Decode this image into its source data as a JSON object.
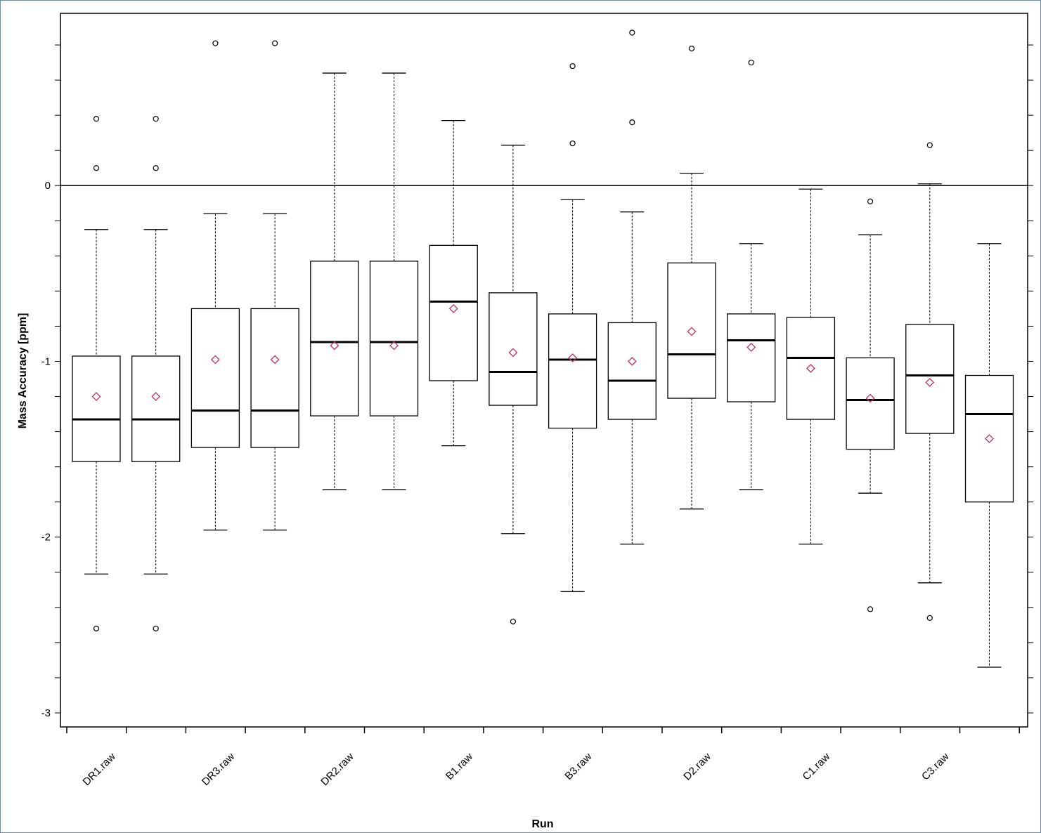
{
  "chart_data": {
    "type": "box",
    "xlabel": "Run",
    "ylabel": "Mass Accuracy [ppm]",
    "ylim": [
      -3.08,
      0.98
    ],
    "yticks": [
      -3,
      -2,
      -1,
      0
    ],
    "reference_line": 0,
    "labeled_categories": [
      "DR1.raw",
      "DR3.raw",
      "DR2.raw",
      "B1.raw",
      "B3.raw",
      "D2.raw",
      "C1.raw",
      "C3.raw"
    ],
    "boxes": [
      {
        "whisker_low": -2.21,
        "q1": -1.57,
        "median": -1.33,
        "q3": -0.97,
        "whisker_high": -0.25,
        "mean": -1.2,
        "outliers": [
          -2.52,
          0.1,
          0.38
        ]
      },
      {
        "whisker_low": -2.21,
        "q1": -1.57,
        "median": -1.33,
        "q3": -0.97,
        "whisker_high": -0.25,
        "mean": -1.2,
        "outliers": [
          -2.52,
          0.1,
          0.38
        ]
      },
      {
        "whisker_low": -1.96,
        "q1": -1.49,
        "median": -1.28,
        "q3": -0.7,
        "whisker_high": -0.16,
        "mean": -0.99,
        "outliers": [
          0.81
        ]
      },
      {
        "whisker_low": -1.96,
        "q1": -1.49,
        "median": -1.28,
        "q3": -0.7,
        "whisker_high": -0.16,
        "mean": -0.99,
        "outliers": [
          0.81
        ]
      },
      {
        "whisker_low": -1.73,
        "q1": -1.31,
        "median": -0.89,
        "q3": -0.43,
        "whisker_high": 0.64,
        "mean": -0.91,
        "outliers": []
      },
      {
        "whisker_low": -1.73,
        "q1": -1.31,
        "median": -0.89,
        "q3": -0.43,
        "whisker_high": 0.64,
        "mean": -0.91,
        "outliers": []
      },
      {
        "whisker_low": -1.48,
        "q1": -1.11,
        "median": -0.66,
        "q3": -0.34,
        "whisker_high": 0.37,
        "mean": -0.7,
        "outliers": []
      },
      {
        "whisker_low": -1.98,
        "q1": -1.25,
        "median": -1.06,
        "q3": -0.61,
        "whisker_high": 0.23,
        "mean": -0.95,
        "outliers": [
          -2.48
        ]
      },
      {
        "whisker_low": -2.31,
        "q1": -1.38,
        "median": -0.99,
        "q3": -0.73,
        "whisker_high": -0.08,
        "mean": -0.98,
        "outliers": [
          0.24,
          0.68
        ]
      },
      {
        "whisker_low": -2.04,
        "q1": -1.33,
        "median": -1.11,
        "q3": -0.78,
        "whisker_high": -0.15,
        "mean": -1.0,
        "outliers": [
          0.36,
          0.87
        ]
      },
      {
        "whisker_low": -1.84,
        "q1": -1.21,
        "median": -0.96,
        "q3": -0.44,
        "whisker_high": 0.07,
        "mean": -0.83,
        "outliers": [
          0.78
        ]
      },
      {
        "whisker_low": -1.73,
        "q1": -1.23,
        "median": -0.88,
        "q3": -0.73,
        "whisker_high": -0.33,
        "mean": -0.92,
        "outliers": [
          0.7
        ]
      },
      {
        "whisker_low": -2.04,
        "q1": -1.33,
        "median": -0.98,
        "q3": -0.75,
        "whisker_high": -0.02,
        "mean": -1.04,
        "outliers": []
      },
      {
        "whisker_low": -1.75,
        "q1": -1.5,
        "median": -1.22,
        "q3": -0.98,
        "whisker_high": -0.28,
        "mean": -1.21,
        "outliers": [
          -2.41,
          -0.09
        ]
      },
      {
        "whisker_low": -2.26,
        "q1": -1.41,
        "median": -1.08,
        "q3": -0.79,
        "whisker_high": 0.01,
        "mean": -1.12,
        "outliers": [
          -2.46,
          0.23
        ]
      },
      {
        "whisker_low": -2.74,
        "q1": -1.8,
        "median": -1.3,
        "q3": -1.08,
        "whisker_high": -0.33,
        "mean": -1.44,
        "outliers": []
      }
    ],
    "colors": {
      "box": "#000000",
      "mean_marker": "#c0305a",
      "reference_line": "#000000"
    }
  }
}
